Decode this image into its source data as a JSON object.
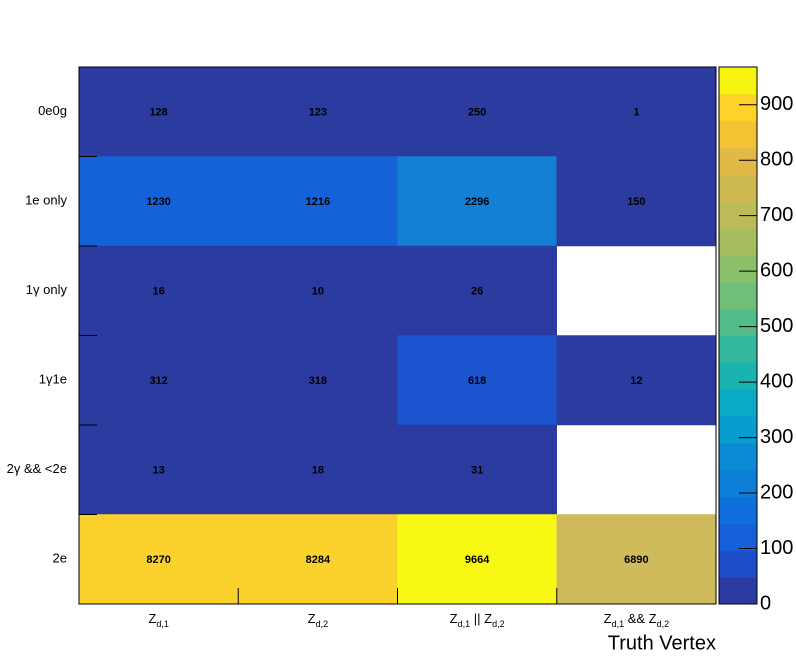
{
  "chart_data": {
    "type": "heatmap",
    "x_label": "Truth Vertex",
    "x_categories": [
      [
        "Z",
        "d,1"
      ],
      [
        "Z",
        "d,2"
      ],
      [
        "Z",
        "d,1",
        " || Z",
        "d,2"
      ],
      [
        "Z",
        "d,1",
        " && Z",
        "d,2"
      ]
    ],
    "y_categories": [
      "0e0g",
      "1e only",
      "1γ only",
      "1γ1e",
      "2γ && <2e",
      "2e"
    ],
    "values": [
      [
        128,
        123,
        250,
        1
      ],
      [
        1230,
        1216,
        2296,
        150
      ],
      [
        16,
        10,
        26,
        null
      ],
      [
        312,
        318,
        618,
        12
      ],
      [
        13,
        18,
        31,
        null
      ],
      [
        8270,
        8284,
        9664,
        6890
      ]
    ],
    "cell_colors": [
      [
        "#2c3b9f",
        "#2c3b9f",
        "#2c3b9f",
        "#2c3b9f"
      ],
      [
        "#1462d8",
        "#1462d8",
        "#1380d6",
        "#2c3b9f"
      ],
      [
        "#2c3b9f",
        "#2c3b9f",
        "#2c3b9f",
        null
      ],
      [
        "#2c3b9f",
        "#2c3b9f",
        "#1a55cf",
        "#2c3b9f"
      ],
      [
        "#2c3b9f",
        "#2c3b9f",
        "#2c3b9f",
        null
      ],
      [
        "#fbd22c",
        "#fbd22c",
        "#f8f814",
        "#d0bb5c"
      ]
    ],
    "zlim": [
      0,
      968
    ],
    "zticks": [
      0,
      100,
      200,
      300,
      400,
      500,
      600,
      700,
      800,
      900
    ],
    "palette": [
      "#2c3b9f",
      "#1e4cc8",
      "#1460d8",
      "#0f6fdc",
      "#0d7ed8",
      "#0b8ad4",
      "#089ccf",
      "#0aa9c4",
      "#1ab3b2",
      "#33b8a0",
      "#52bc8a",
      "#6fbf78",
      "#8bbf6a",
      "#a5bd5f",
      "#bbbc58",
      "#cfba50",
      "#e2b946",
      "#f5c233",
      "#fcd326",
      "#f7f50f"
    ]
  }
}
